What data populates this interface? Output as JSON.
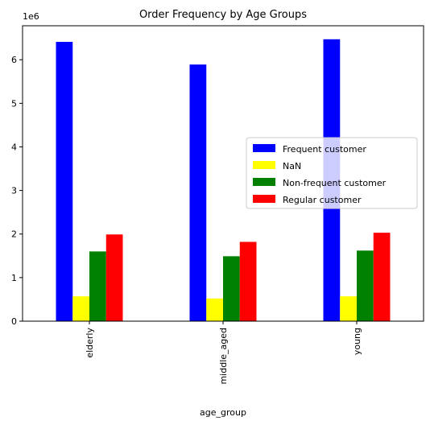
{
  "chart_data": {
    "type": "bar",
    "title": "Order Frequency by Age Groups",
    "xlabel": "age_group",
    "ylabel": "",
    "y_scale_label": "1e6",
    "y_multiplier": 1000000,
    "categories": [
      "elderly",
      "middle_aged",
      "young"
    ],
    "ylim": [
      0,
      6.78
    ],
    "yticks": [
      0,
      1,
      2,
      3,
      4,
      5,
      6
    ],
    "series": [
      {
        "name": "Frequent customer",
        "color": "#0000ff",
        "values": [
          6.41,
          5.89,
          6.47
        ]
      },
      {
        "name": "NaN",
        "color": "#ffff00",
        "values": [
          0.57,
          0.52,
          0.57
        ]
      },
      {
        "name": "Non-frequent customer",
        "color": "#008000",
        "values": [
          1.6,
          1.49,
          1.62
        ]
      },
      {
        "name": "Regular customer",
        "color": "#ff0000",
        "values": [
          1.99,
          1.82,
          2.03
        ]
      }
    ],
    "grid": false,
    "legend_position": "center-right"
  }
}
